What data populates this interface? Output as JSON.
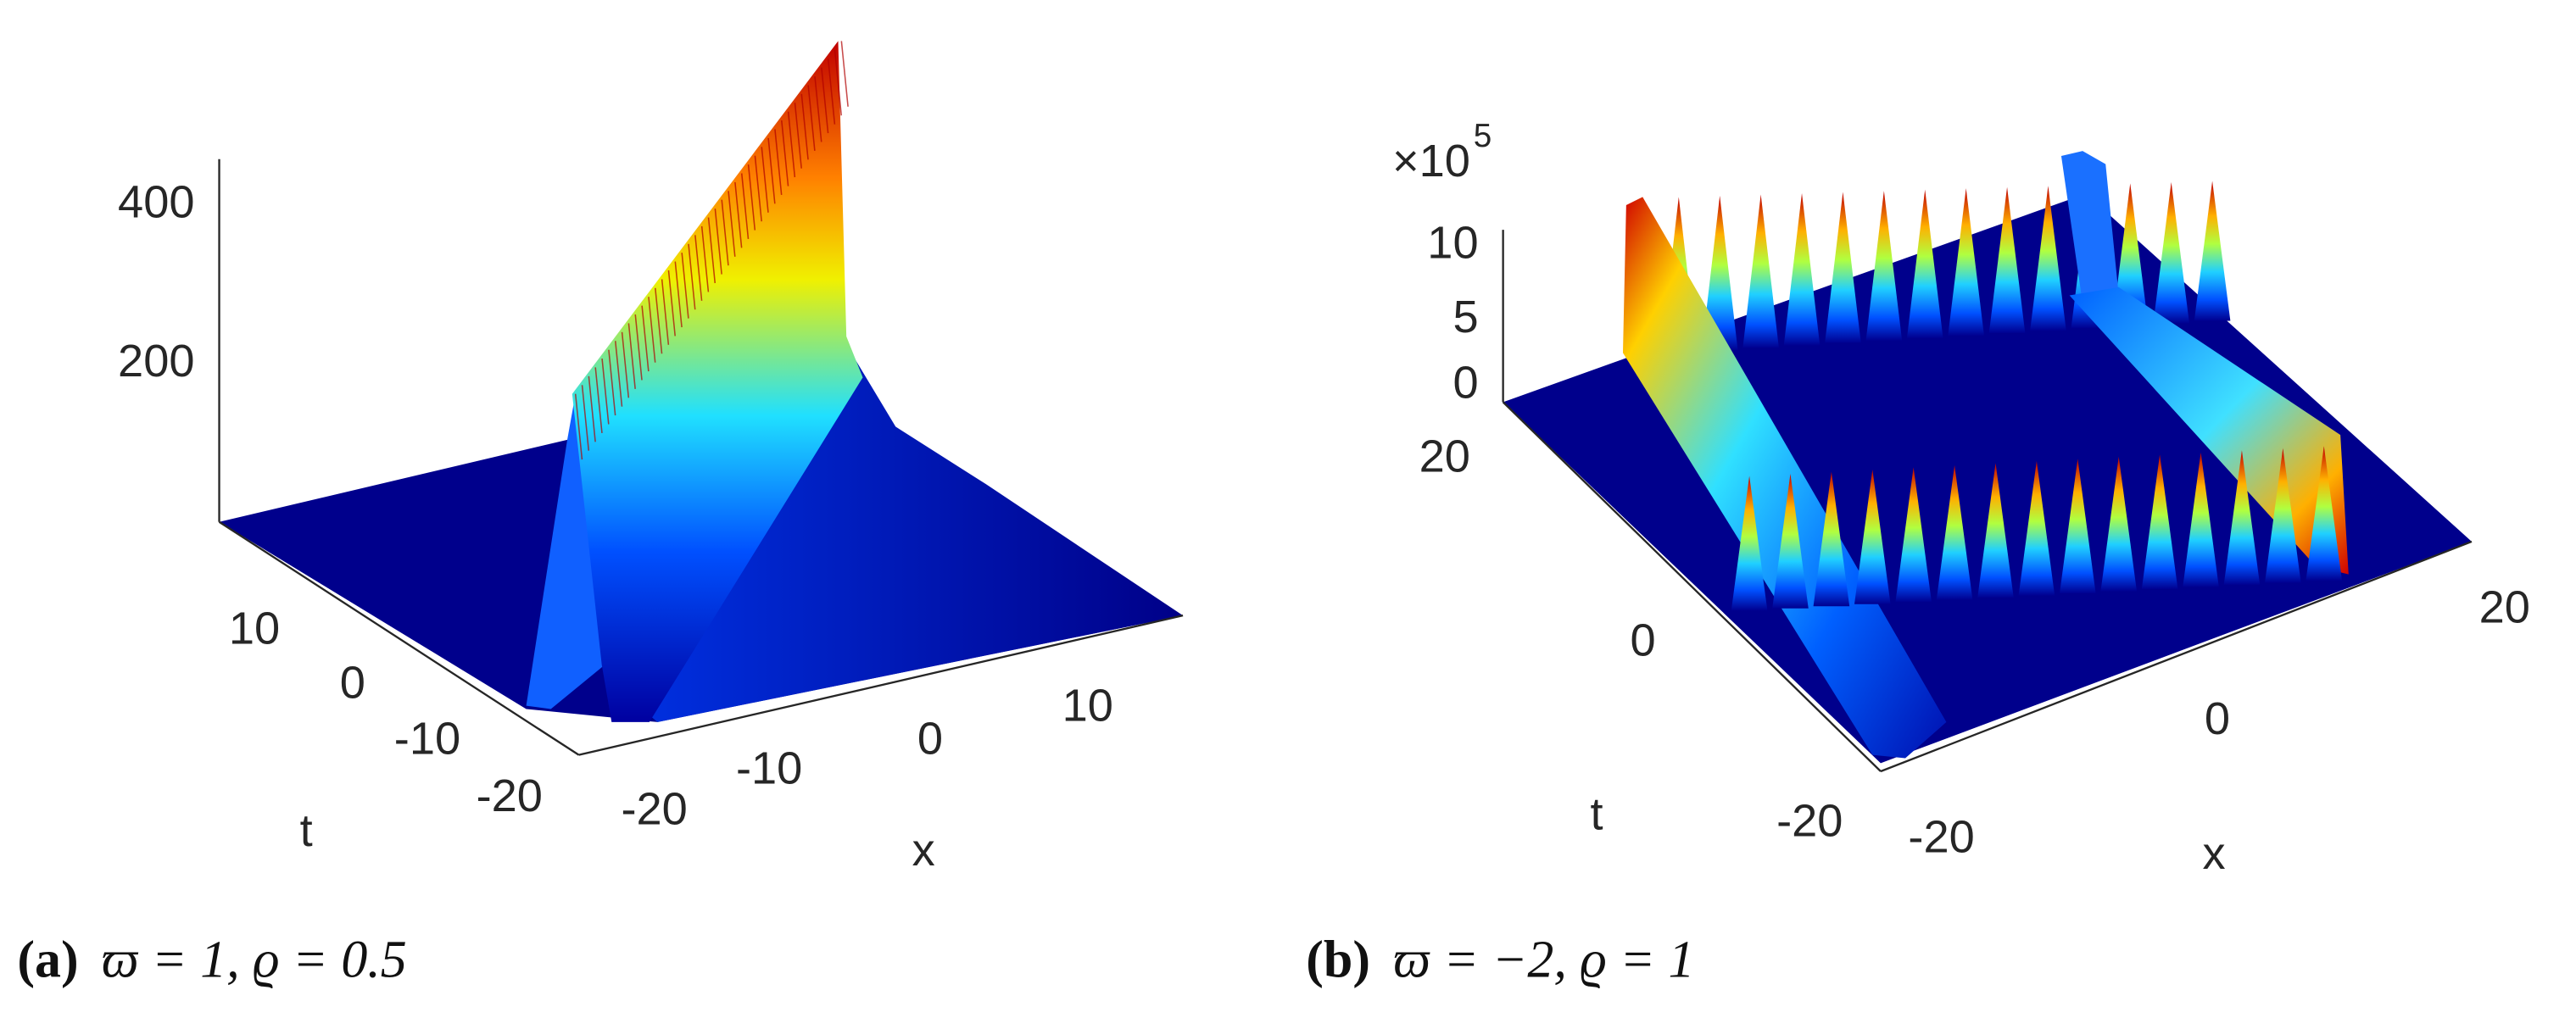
{
  "figure": {
    "panels": [
      {
        "z_ticks": [
          400,
          200
        ],
        "t_ticks": [
          10,
          0,
          -10,
          -20
        ],
        "x_ticks": [
          -20,
          -10,
          0,
          10
        ],
        "t_label": "t",
        "x_label": "x",
        "caption": {
          "label": "(a)",
          "text": "ϖ = 1, ϱ = 0.5"
        }
      },
      {
        "z_multiplier": "×10",
        "z_exponent": "5",
        "z_ticks": [
          10,
          5,
          0
        ],
        "t_ticks": [
          20,
          0,
          -20
        ],
        "x_ticks": [
          -20,
          0,
          20
        ],
        "t_label": "t",
        "x_label": "x",
        "caption": {
          "label": "(b)",
          "text": "ϖ = −2, ϱ = 1"
        }
      }
    ]
  }
}
